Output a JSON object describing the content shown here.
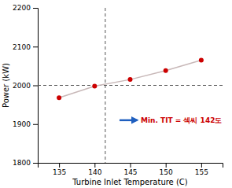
{
  "chart_data": {
    "type": "line",
    "xlabel": "Turbine Inlet Temperature (C)",
    "ylabel": "Power (kW)",
    "x": [
      135,
      140,
      145,
      150,
      155
    ],
    "values": [
      1968,
      1998,
      2015,
      2038,
      2065
    ],
    "color": "#c8b8b8",
    "marker": "circle",
    "colors": [
      "#cc0000",
      "#cc0000",
      "#cc0000",
      "#cc0000",
      "#cc0000"
    ],
    "xlim": [
      132,
      158
    ],
    "ylim": [
      1800,
      2200
    ],
    "xticks": [
      135,
      140,
      145,
      150,
      155
    ],
    "yticks": [
      1800,
      1900,
      2000,
      2100,
      2200
    ],
    "grid": false,
    "annotations": [
      {
        "type": "hline",
        "y": 2000,
        "color": "#555555"
      },
      {
        "type": "vline",
        "x": 141.5,
        "color": "#555555"
      },
      {
        "type": "arrow",
        "x_start": 143.5,
        "x_end": 146.0,
        "y": 1910,
        "color": "#1f5fbf"
      },
      {
        "type": "text",
        "text": "Min. TIT = 섹씨 142도",
        "x": 146.5,
        "y": 1910,
        "color": "#cc0000"
      }
    ]
  }
}
